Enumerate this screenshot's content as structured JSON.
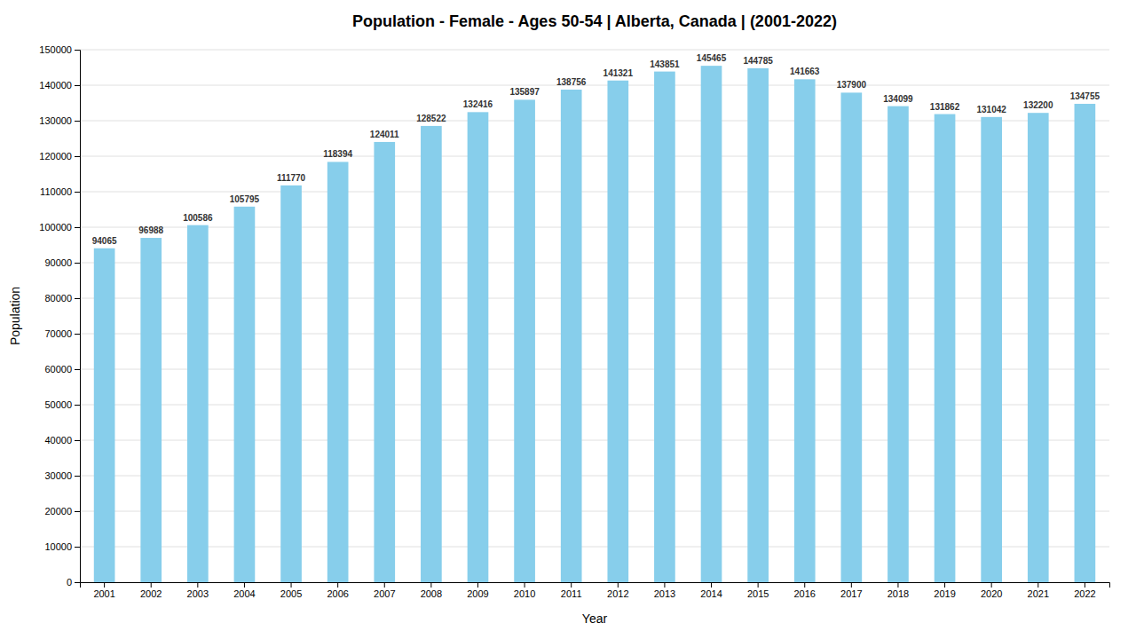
{
  "chart_data": {
    "type": "bar",
    "title": "Population - Female - Ages 50-54 | Alberta, Canada |  (2001-2022)",
    "x_label": "Year",
    "y_label": "Population",
    "categories": [
      "2001",
      "2002",
      "2003",
      "2004",
      "2005",
      "2006",
      "2007",
      "2008",
      "2009",
      "2010",
      "2011",
      "2012",
      "2013",
      "2014",
      "2015",
      "2016",
      "2017",
      "2018",
      "2019",
      "2020",
      "2021",
      "2022"
    ],
    "values": [
      94065,
      96988,
      100586,
      105795,
      111770,
      118394,
      124011,
      128522,
      132416,
      135897,
      138756,
      141321,
      143851,
      145465,
      144785,
      141663,
      137900,
      134099,
      131862,
      131042,
      132200,
      134755
    ],
    "color": "#87ceeb",
    "ylim": [
      0,
      150000
    ],
    "yticks": [
      0,
      10000,
      20000,
      30000,
      40000,
      50000,
      60000,
      70000,
      80000,
      90000,
      100000,
      110000,
      120000,
      130000,
      140000,
      150000
    ],
    "grid": true,
    "data_labels": true
  }
}
